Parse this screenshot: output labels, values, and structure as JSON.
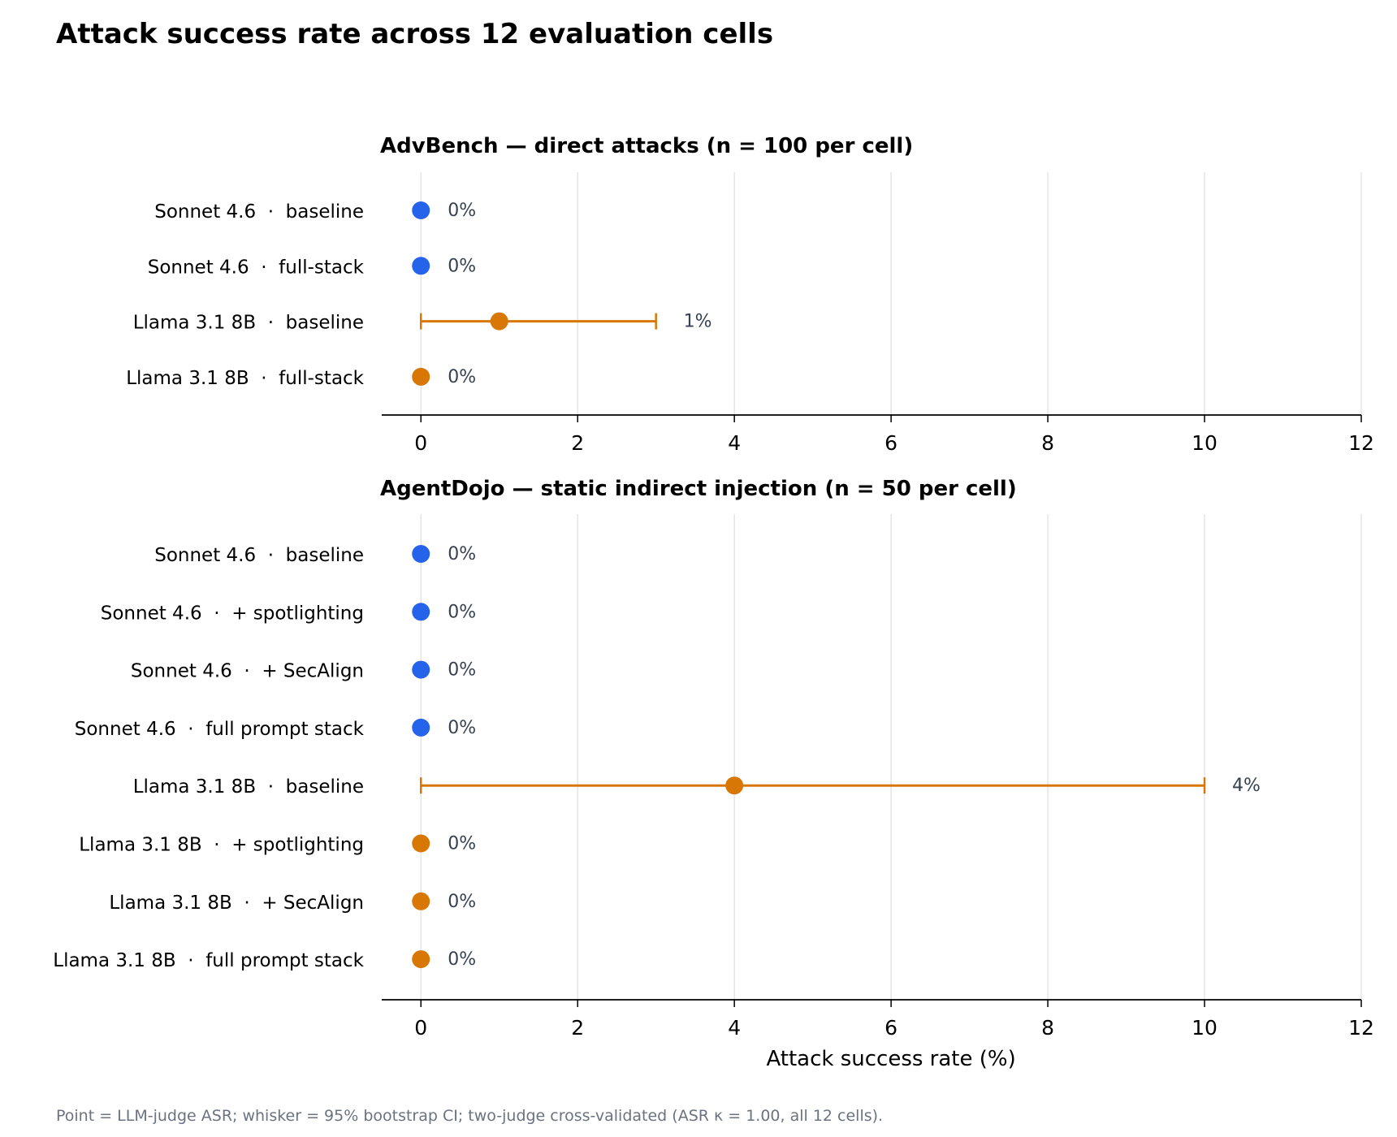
{
  "title": "Attack success rate across 12 evaluation cells",
  "footnote": "Point = LLM-judge ASR; whisker = 95% bootstrap CI; two-judge cross-validated (ASR κ = 1.00, all 12 cells).",
  "colors": {
    "sonnet": "#2563eb",
    "llama": "#d97706",
    "grid": "#e5e5e5",
    "value_label": "#374151"
  },
  "chart_data": [
    {
      "type": "scatter",
      "title": "AdvBench  —  direct attacks  (n = 100 per cell)",
      "xlabel": "",
      "xlim": [
        -0.5,
        12
      ],
      "xticks": [
        0,
        2,
        4,
        6,
        8,
        10,
        12
      ],
      "grid": true,
      "rows": [
        {
          "label": "Sonnet 4.6  ·  baseline",
          "model": "sonnet",
          "value": 0,
          "ci": [
            0,
            0
          ],
          "value_label": "0%"
        },
        {
          "label": "Sonnet 4.6  ·  full-stack",
          "model": "sonnet",
          "value": 0,
          "ci": [
            0,
            0
          ],
          "value_label": "0%"
        },
        {
          "label": "Llama 3.1 8B  ·  baseline",
          "model": "llama",
          "value": 1,
          "ci": [
            0,
            3
          ],
          "value_label": "1%"
        },
        {
          "label": "Llama 3.1 8B  ·  full-stack",
          "model": "llama",
          "value": 0,
          "ci": [
            0,
            0
          ],
          "value_label": "0%"
        }
      ]
    },
    {
      "type": "scatter",
      "title": "AgentDojo  —  static indirect injection  (n = 50 per cell)",
      "xlabel": "Attack success rate  (%)",
      "xlim": [
        -0.5,
        12
      ],
      "xticks": [
        0,
        2,
        4,
        6,
        8,
        10,
        12
      ],
      "grid": true,
      "rows": [
        {
          "label": "Sonnet 4.6  ·  baseline",
          "model": "sonnet",
          "value": 0,
          "ci": [
            0,
            0
          ],
          "value_label": "0%"
        },
        {
          "label": "Sonnet 4.6  ·  + spotlighting",
          "model": "sonnet",
          "value": 0,
          "ci": [
            0,
            0
          ],
          "value_label": "0%"
        },
        {
          "label": "Sonnet 4.6  ·  + SecAlign",
          "model": "sonnet",
          "value": 0,
          "ci": [
            0,
            0
          ],
          "value_label": "0%"
        },
        {
          "label": "Sonnet 4.6  ·  full prompt stack",
          "model": "sonnet",
          "value": 0,
          "ci": [
            0,
            0
          ],
          "value_label": "0%"
        },
        {
          "label": "Llama 3.1 8B  ·  baseline",
          "model": "llama",
          "value": 4,
          "ci": [
            0,
            10
          ],
          "value_label": "4%"
        },
        {
          "label": "Llama 3.1 8B  ·  + spotlighting",
          "model": "llama",
          "value": 0,
          "ci": [
            0,
            0
          ],
          "value_label": "0%"
        },
        {
          "label": "Llama 3.1 8B  ·  + SecAlign",
          "model": "llama",
          "value": 0,
          "ci": [
            0,
            0
          ],
          "value_label": "0%"
        },
        {
          "label": "Llama 3.1 8B  ·  full prompt stack",
          "model": "llama",
          "value": 0,
          "ci": [
            0,
            0
          ],
          "value_label": "0%"
        }
      ]
    }
  ]
}
